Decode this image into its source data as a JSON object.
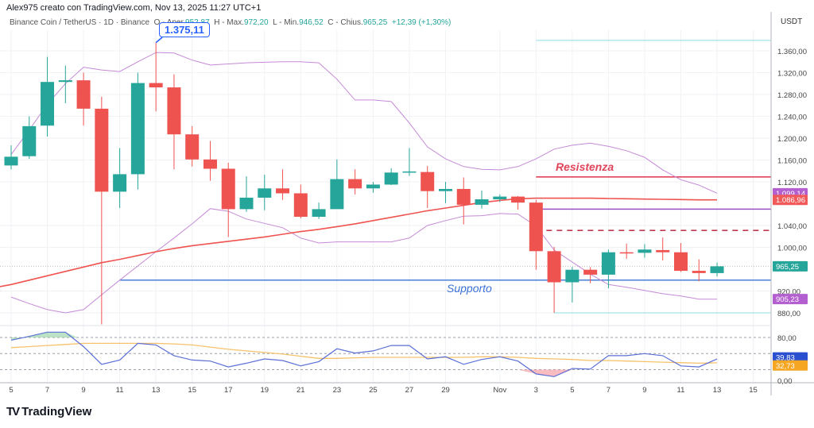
{
  "header": {
    "credit": "Alex975 creato con TradingView.com, Nov 13, 2025 11:27 UTC+1"
  },
  "legend": {
    "symbol": "Binance Coin / TetherUS · 1D · Binance",
    "open_label": "O - Aper.",
    "open": "952,87",
    "high_label": "H - Max.",
    "high": "972,20",
    "low_label": "L - Min.",
    "low": "946,52",
    "close_label": "C - Chius.",
    "close": "965,25",
    "change": "+12,39 (+1,30%)"
  },
  "currency": "USDT",
  "logo": {
    "text": "TradingView"
  },
  "callout": {
    "text": "1.375,11"
  },
  "annotations": {
    "resistance": "Resistenza",
    "support": "Supporto"
  },
  "colors": {
    "up": "#26a69a",
    "down": "#ef5350",
    "bollinger": "#c58ad6",
    "ma": "#ef5350",
    "rsi": "#5b6fd6",
    "rsi_ma": "#f5c26b",
    "support": "#4a7fd8",
    "resistance": "#e0455a",
    "level_purple": "#9c4fc0",
    "level_dashed": "#c0394f",
    "level_cyan": "#8fdce0"
  },
  "chart_data": [
    {
      "type": "candlestick",
      "ylabel": "USDT",
      "ylim": [
        860,
        1395
      ],
      "grid": true,
      "dates": [
        "2025-10-05",
        "2025-10-06",
        "2025-10-07",
        "2025-10-08",
        "2025-10-09",
        "2025-10-10",
        "2025-10-11",
        "2025-10-12",
        "2025-10-13",
        "2025-10-14",
        "2025-10-15",
        "2025-10-16",
        "2025-10-17",
        "2025-10-18",
        "2025-10-19",
        "2025-10-20",
        "2025-10-21",
        "2025-10-22",
        "2025-10-23",
        "2025-10-24",
        "2025-10-25",
        "2025-10-26",
        "2025-10-27",
        "2025-10-28",
        "2025-10-29",
        "2025-10-30",
        "2025-10-31",
        "2025-11-01",
        "2025-11-02",
        "2025-11-03",
        "2025-11-04",
        "2025-11-05",
        "2025-11-06",
        "2025-11-07",
        "2025-11-08",
        "2025-11-09",
        "2025-11-10",
        "2025-11-11",
        "2025-11-12",
        "2025-11-13"
      ],
      "ohlc": [
        [
          1150,
          1187,
          1143,
          1166
        ],
        [
          1167,
          1240,
          1162,
          1222
        ],
        [
          1223,
          1349,
          1203,
          1303
        ],
        [
          1303,
          1333,
          1264,
          1306
        ],
        [
          1306,
          1320,
          1223,
          1254
        ],
        [
          1254,
          1276,
          859,
          1102
        ],
        [
          1102,
          1182,
          1072,
          1134
        ],
        [
          1134,
          1320,
          1106,
          1301
        ],
        [
          1301,
          1375.11,
          1249,
          1293
        ],
        [
          1293,
          1317,
          1143,
          1207
        ],
        [
          1207,
          1222,
          1148,
          1161
        ],
        [
          1161,
          1195,
          1122,
          1144
        ],
        [
          1144,
          1155,
          1019,
          1070
        ],
        [
          1070,
          1130,
          1065,
          1091
        ],
        [
          1091,
          1133,
          1068,
          1108
        ],
        [
          1108,
          1143,
          1087,
          1099
        ],
        [
          1099,
          1115,
          1053,
          1056
        ],
        [
          1056,
          1082,
          1052,
          1070
        ],
        [
          1070,
          1161,
          1070,
          1125
        ],
        [
          1125,
          1143,
          1097,
          1108
        ],
        [
          1108,
          1120,
          1100,
          1115
        ],
        [
          1115,
          1145,
          1114,
          1137
        ],
        [
          1137,
          1182,
          1131,
          1139
        ],
        [
          1138,
          1149,
          1072,
          1103
        ],
        [
          1103,
          1120,
          1081,
          1107
        ],
        [
          1107,
          1128,
          1042,
          1078
        ],
        [
          1078,
          1104,
          1071,
          1088
        ],
        [
          1088,
          1097,
          1083,
          1093
        ],
        [
          1093,
          1094,
          1069,
          1082
        ],
        [
          1082,
          1087,
          959,
          993
        ],
        [
          993,
          1001,
          880,
          936
        ],
        [
          936,
          964,
          899,
          959
        ],
        [
          959,
          964,
          934,
          950
        ],
        [
          950,
          996,
          925,
          991
        ],
        [
          991,
          1007,
          979,
          990
        ],
        [
          990,
          1006,
          981,
          996
        ],
        [
          995,
          1018,
          976,
          991
        ],
        [
          991,
          1008,
          955,
          957
        ],
        [
          957,
          978,
          938,
          952.9
        ],
        [
          952.87,
          972.2,
          946.52,
          965.25
        ]
      ],
      "moving_average": [
        932,
        940,
        948,
        956,
        964,
        972,
        978,
        985,
        992,
        998,
        1003,
        1007,
        1011,
        1015,
        1019,
        1024,
        1029,
        1033,
        1038,
        1043,
        1049,
        1055,
        1061,
        1067,
        1072,
        1077,
        1082,
        1086,
        1089,
        1090,
        1090,
        1090,
        1090,
        1089.5,
        1089,
        1088.5,
        1088,
        1087.5,
        1087,
        1086.96
      ],
      "bollinger_upper": [
        1170,
        1215,
        1262,
        1300,
        1330,
        1325,
        1322,
        1340,
        1357,
        1356,
        1343,
        1334,
        1336,
        1338,
        1339,
        1340,
        1340,
        1338,
        1308,
        1270,
        1270,
        1267,
        1228,
        1184,
        1162,
        1148,
        1143,
        1142,
        1148,
        1162,
        1180,
        1187,
        1191,
        1185,
        1177,
        1165,
        1142,
        1124,
        1114,
        1099.14
      ],
      "bollinger_lower": [
        909,
        897,
        886,
        880,
        886,
        913,
        940,
        966,
        992,
        1017,
        1043,
        1071,
        1066,
        1052,
        1044,
        1036,
        1017,
        1008,
        1010,
        1010,
        1010,
        1010,
        1017,
        1040,
        1049,
        1057,
        1058,
        1062,
        1061,
        1039,
        995,
        973,
        951,
        932,
        927,
        921,
        915,
        911,
        905,
        905.23
      ],
      "levels": [
        {
          "name": "Resistenza",
          "price": 1129,
          "from": "2025-11-03",
          "style": "solid",
          "color_key": "resistance"
        },
        {
          "price": 1070,
          "from": "2025-11-03",
          "style": "solid",
          "color_key": "level_purple"
        },
        {
          "price": 1031,
          "from": "2025-11-03",
          "style": "dashed",
          "color_key": "level_dashed"
        },
        {
          "name": "Supporto",
          "price": 940,
          "from": "2025-10-11",
          "style": "solid",
          "color_key": "support"
        },
        {
          "price": 1379,
          "from": "2025-11-03",
          "style": "solid",
          "color_key": "level_cyan"
        },
        {
          "price": 880,
          "from": "2025-11-04",
          "style": "solid",
          "color_key": "level_cyan"
        }
      ],
      "y_ticks": [
        {
          "v": 1360,
          "label": "1.360,00"
        },
        {
          "v": 1320,
          "label": "1.320,00"
        },
        {
          "v": 1280,
          "label": "1.280,00"
        },
        {
          "v": 1240,
          "label": "1.240,00"
        },
        {
          "v": 1200,
          "label": "1.200,00"
        },
        {
          "v": 1160,
          "label": "1.160,00"
        },
        {
          "v": 1120,
          "label": "1.120,00"
        },
        {
          "v": 1040,
          "label": "1.040,00"
        },
        {
          "v": 1000,
          "label": "1.000,00"
        },
        {
          "v": 920,
          "label": "920,00"
        },
        {
          "v": 880,
          "label": "880,00"
        }
      ],
      "price_labels": [
        {
          "v": 1099.14,
          "label": "1.099,14",
          "color": "#b35fd0"
        },
        {
          "v": 1086.96,
          "label": "1.086,96",
          "color": "#f05a5a"
        },
        {
          "v": 965.25,
          "label": "965,25",
          "color": "#26a69a"
        },
        {
          "v": 905.23,
          "label": "905,23",
          "color": "#b35fd0"
        }
      ]
    },
    {
      "type": "line",
      "ylim": [
        0,
        80
      ],
      "rsi": [
        75,
        82,
        90,
        90,
        63,
        30,
        38,
        69,
        66,
        46,
        38,
        36,
        25,
        32,
        40,
        37,
        27,
        35,
        59,
        51,
        55,
        65,
        65,
        40,
        44,
        30,
        39,
        44,
        36,
        12,
        7,
        22,
        21,
        46,
        46,
        50,
        46,
        27,
        25,
        39.83
      ],
      "rsi_ma": [
        61,
        63,
        65,
        67,
        69,
        69,
        69,
        69,
        69,
        68,
        66,
        62,
        58,
        55,
        52,
        49,
        45,
        41,
        41,
        42,
        43,
        43,
        43,
        43,
        43,
        43,
        44,
        44,
        43,
        41,
        40,
        39,
        37,
        37,
        36,
        35,
        34,
        33,
        32,
        32.73
      ],
      "bands": [
        80,
        50,
        20
      ],
      "y_ticks": [
        {
          "v": 80,
          "label": "80,00"
        },
        {
          "v": 0,
          "label": "0,00"
        }
      ],
      "value_labels": [
        {
          "v": 39.83,
          "label": "39,83",
          "color": "#2a4fcf"
        },
        {
          "v": 32.73,
          "label": "32,73",
          "color": "#f5a623"
        }
      ]
    }
  ],
  "x_ticks": [
    {
      "date": "2025-10-05",
      "label": "5"
    },
    {
      "date": "2025-10-07",
      "label": "7"
    },
    {
      "date": "2025-10-09",
      "label": "9"
    },
    {
      "date": "2025-10-11",
      "label": "11"
    },
    {
      "date": "2025-10-13",
      "label": "13"
    },
    {
      "date": "2025-10-15",
      "label": "15"
    },
    {
      "date": "2025-10-17",
      "label": "17"
    },
    {
      "date": "2025-10-19",
      "label": "19"
    },
    {
      "date": "2025-10-21",
      "label": "21"
    },
    {
      "date": "2025-10-23",
      "label": "23"
    },
    {
      "date": "2025-10-25",
      "label": "25"
    },
    {
      "date": "2025-10-27",
      "label": "27"
    },
    {
      "date": "2025-10-29",
      "label": "29"
    },
    {
      "date": "2025-11-01",
      "label": "Nov"
    },
    {
      "date": "2025-11-03",
      "label": "3"
    },
    {
      "date": "2025-11-05",
      "label": "5"
    },
    {
      "date": "2025-11-07",
      "label": "7"
    },
    {
      "date": "2025-11-09",
      "label": "9"
    },
    {
      "date": "2025-11-11",
      "label": "11"
    },
    {
      "date": "2025-11-13",
      "label": "13"
    },
    {
      "date": "2025-11-15",
      "label": "15"
    }
  ]
}
